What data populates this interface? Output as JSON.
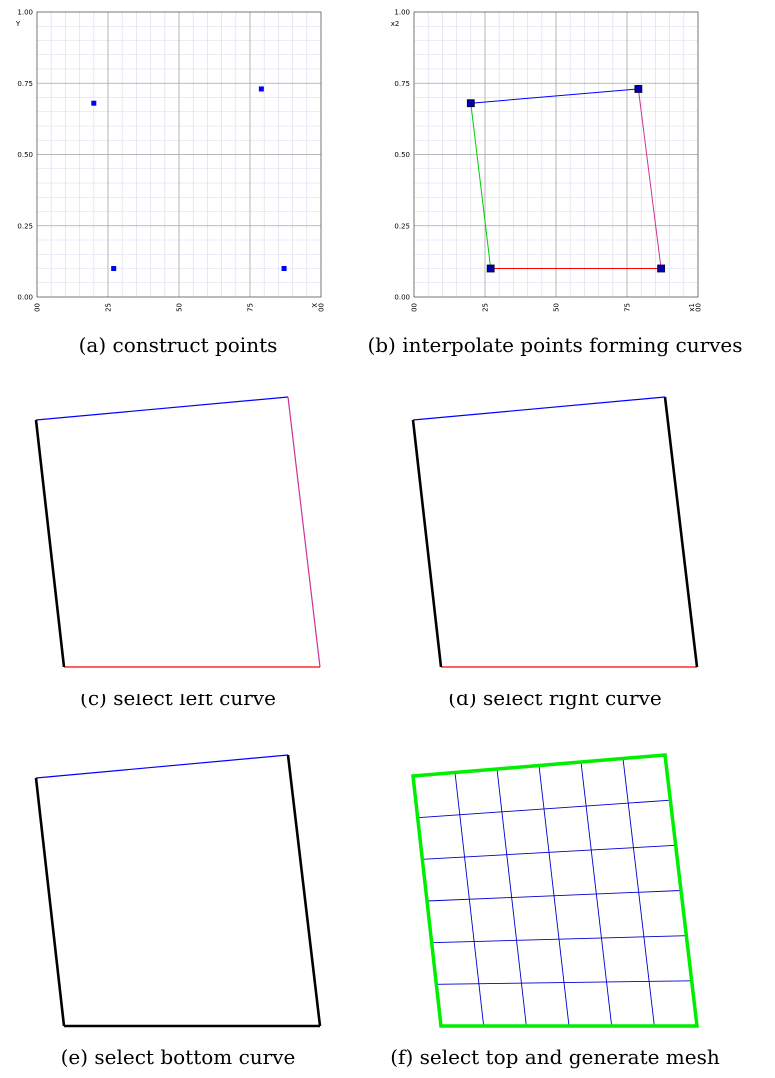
{
  "figure": {
    "panels": [
      {
        "id": "a",
        "caption": "(a) construct points"
      },
      {
        "id": "b",
        "caption": "(b) interpolate points forming curves"
      },
      {
        "id": "c",
        "caption": "(c) select left curve"
      },
      {
        "id": "d",
        "caption": "(d) select right curve"
      },
      {
        "id": "e",
        "caption": "(e) select bottom curve"
      },
      {
        "id": "f",
        "caption": "(f) select top and generate mesh"
      }
    ]
  },
  "chart_data": [
    {
      "type": "scatter",
      "panel": "a",
      "xlabel": "X",
      "ylabel": "Y",
      "xlim": [
        0,
        1
      ],
      "ylim": [
        0,
        1
      ],
      "xticks": [
        "0.00",
        "0.25",
        "0.50",
        "0.75",
        "1.00"
      ],
      "yticks": [
        "0.00",
        "0.25",
        "0.50",
        "0.75",
        "1.00"
      ],
      "grid": true,
      "points": [
        {
          "x": 0.2,
          "y": 0.68
        },
        {
          "x": 0.79,
          "y": 0.73
        },
        {
          "x": 0.27,
          "y": 0.1
        },
        {
          "x": 0.87,
          "y": 0.1
        }
      ],
      "marker_color": "#0000ff"
    },
    {
      "type": "line",
      "panel": "b",
      "xlabel": "x1",
      "ylabel": "x2",
      "xlim": [
        0,
        1
      ],
      "ylim": [
        0,
        1
      ],
      "xticks": [
        "0.00",
        "0.25",
        "0.50",
        "0.75",
        "1.00"
      ],
      "yticks": [
        "0.00",
        "0.25",
        "0.50",
        "0.75",
        "1.00"
      ],
      "grid": true,
      "points": [
        {
          "x": 0.2,
          "y": 0.68
        },
        {
          "x": 0.79,
          "y": 0.73
        },
        {
          "x": 0.27,
          "y": 0.1
        },
        {
          "x": 0.87,
          "y": 0.1
        }
      ],
      "curves": [
        {
          "from": 0,
          "to": 1,
          "color": "#0000ff"
        },
        {
          "from": 1,
          "to": 3,
          "color": "#cc3399"
        },
        {
          "from": 2,
          "to": 3,
          "color": "#ff0000"
        },
        {
          "from": 0,
          "to": 2,
          "color": "#00cc00"
        }
      ]
    }
  ],
  "colors": {
    "top": "#0000ff",
    "right": "#cc3399",
    "bottom": "#ff0000",
    "left": "#00cc00",
    "selected": "#000000",
    "mesh_boundary": "#00ee00",
    "mesh": "#0000cc"
  }
}
